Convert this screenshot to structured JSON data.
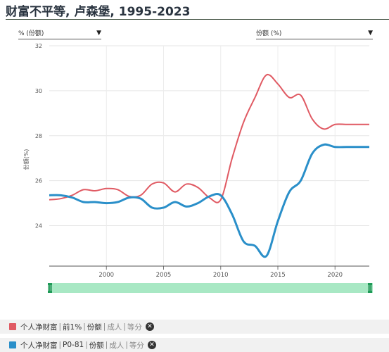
{
  "title": "财富不平等, 卢森堡, 1995-2023",
  "dropdown_left": {
    "value": "% (份额)"
  },
  "dropdown_right": {
    "value": "份额 (%)"
  },
  "legend": [
    {
      "color": "#e05a63",
      "name": "个人净财富",
      "parts": [
        "前1%",
        "份额"
      ],
      "muted": [
        "成人",
        "等分"
      ]
    },
    {
      "color": "#2a8fc9",
      "name": "个人净财富",
      "parts": [
        "P0-81",
        "份额"
      ],
      "muted": [
        "成人",
        "等分"
      ]
    }
  ],
  "chart_data": {
    "type": "line",
    "ylabel": "份额(%)",
    "ylim": [
      22.2,
      32
    ],
    "xlim": [
      1995,
      2023
    ],
    "y_ticks": [
      24,
      26,
      28,
      30,
      32
    ],
    "x_ticks": [
      2000,
      2005,
      2010,
      2015,
      2020
    ],
    "grid": true,
    "series": [
      {
        "name": "前1%",
        "color": "#e05a63",
        "points": [
          [
            1995,
            25.15
          ],
          [
            1996,
            25.2
          ],
          [
            1997,
            25.35
          ],
          [
            1998,
            25.6
          ],
          [
            1999,
            25.55
          ],
          [
            2000,
            25.65
          ],
          [
            2001,
            25.6
          ],
          [
            2002,
            25.3
          ],
          [
            2003,
            25.35
          ],
          [
            2004,
            25.85
          ],
          [
            2005,
            25.9
          ],
          [
            2006,
            25.5
          ],
          [
            2007,
            25.85
          ],
          [
            2008,
            25.7
          ],
          [
            2009,
            25.25
          ],
          [
            2010,
            25.15
          ],
          [
            2011,
            27.0
          ],
          [
            2012,
            28.6
          ],
          [
            2013,
            29.7
          ],
          [
            2014,
            30.7
          ],
          [
            2015,
            30.3
          ],
          [
            2016,
            29.7
          ],
          [
            2017,
            29.8
          ],
          [
            2018,
            28.75
          ],
          [
            2019,
            28.3
          ],
          [
            2020,
            28.5
          ],
          [
            2021,
            28.5
          ],
          [
            2022,
            28.5
          ],
          [
            2023,
            28.5
          ]
        ]
      },
      {
        "name": "P0-81",
        "color": "#2a8fc9",
        "points": [
          [
            1995,
            25.35
          ],
          [
            1996,
            25.35
          ],
          [
            1997,
            25.25
          ],
          [
            1998,
            25.05
          ],
          [
            1999,
            25.05
          ],
          [
            2000,
            25.0
          ],
          [
            2001,
            25.05
          ],
          [
            2002,
            25.25
          ],
          [
            2003,
            25.2
          ],
          [
            2004,
            24.8
          ],
          [
            2005,
            24.8
          ],
          [
            2006,
            25.05
          ],
          [
            2007,
            24.85
          ],
          [
            2008,
            25.0
          ],
          [
            2009,
            25.3
          ],
          [
            2010,
            25.35
          ],
          [
            2011,
            24.5
          ],
          [
            2012,
            23.3
          ],
          [
            2013,
            23.1
          ],
          [
            2014,
            22.65
          ],
          [
            2015,
            24.2
          ],
          [
            2016,
            25.5
          ],
          [
            2017,
            26.0
          ],
          [
            2018,
            27.2
          ],
          [
            2019,
            27.6
          ],
          [
            2020,
            27.5
          ],
          [
            2021,
            27.5
          ],
          [
            2022,
            27.5
          ],
          [
            2023,
            27.5
          ]
        ]
      }
    ]
  }
}
